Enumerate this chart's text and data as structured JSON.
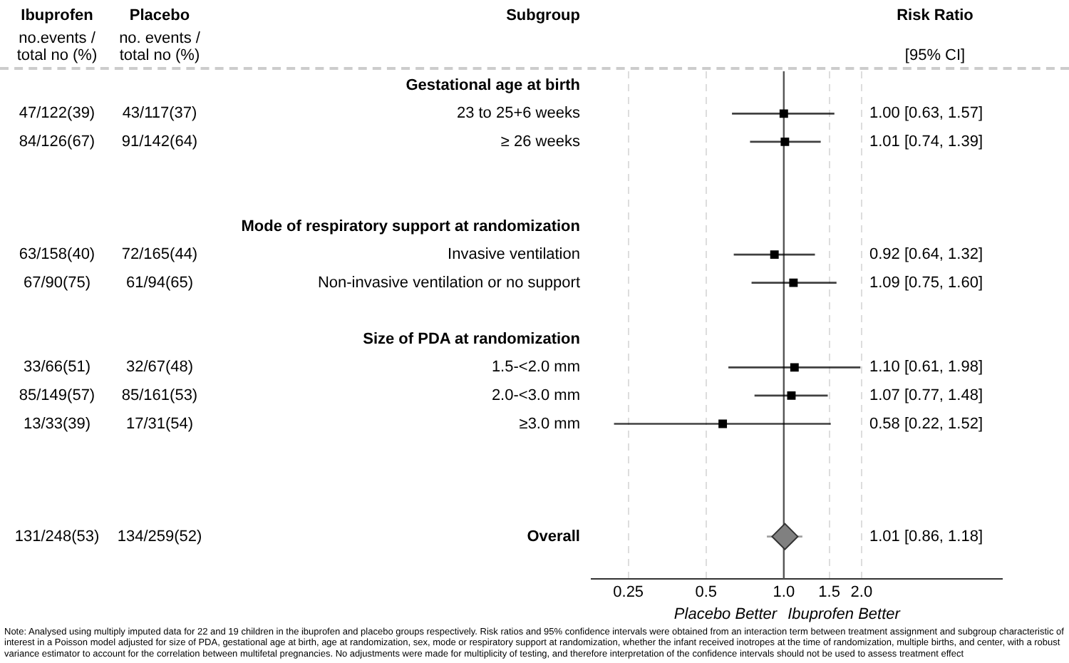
{
  "chart_data": {
    "type": "scatter",
    "orientation": "horizontal",
    "log": "x",
    "grid": "x",
    "marker": "square",
    "categories": [
      "Gestational age at birth",
      "23 to 25+6 weeks",
      "≥ 26 weeks",
      null,
      null,
      "Mode of respiratory support at randomization",
      "Invasive ventilation",
      "Non-invasive ventilation or no support",
      null,
      "Size of PDA at randomization",
      "1.5-<2.0 mm",
      "2.0-<3.0 mm",
      "≥3.0 mm",
      null,
      null,
      null,
      "Overall",
      null
    ],
    "xlim": [
      0.18,
      7
    ],
    "xticks": [
      0.25,
      0.5,
      {
        "value": 1,
        "label": "1.0"
      },
      1.5,
      {
        "value": 2,
        "label": "2.0"
      }
    ],
    "series": [
      {
        "color": "#000000",
        "values": [
          null,
          1.0,
          1.01,
          null,
          null,
          null,
          0.92,
          1.09,
          null,
          null,
          1.1,
          1.07,
          0.58,
          null,
          null,
          null,
          null,
          null
        ],
        "errors": [
          null,
          [
            0.63,
            1.57
          ],
          [
            0.74,
            1.39
          ],
          null,
          null,
          null,
          [
            0.64,
            1.32
          ],
          [
            0.75,
            1.6
          ],
          null,
          null,
          [
            0.61,
            1.98
          ],
          [
            0.77,
            1.48
          ],
          [
            0.22,
            1.52
          ],
          null,
          null,
          null,
          null,
          null
        ]
      },
      {
        "color": "#808080",
        "marker": "diamond",
        "values": [
          null,
          null,
          null,
          null,
          null,
          null,
          null,
          null,
          null,
          null,
          null,
          null,
          null,
          null,
          null,
          null,
          1.01,
          null
        ],
        "errors": [
          null,
          null,
          null,
          null,
          null,
          null,
          null,
          null,
          null,
          null,
          null,
          null,
          null,
          null,
          null,
          null,
          [
            0.86,
            1.18
          ],
          null
        ]
      }
    ],
    "ref_lines": [
      {
        "axis": "x",
        "value": 1,
        "color": "#555555"
      }
    ],
    "annotations": [
      "Subgroup",
      "Ibuprofen",
      "no.events / total no (%)",
      "Placebo",
      "no. events / total no (%)",
      "Risk Ratio",
      "[95% CI]",
      "47/122(39)",
      "43/117(37)",
      "1.00 [0.63, 1.57]",
      "84/126(67)",
      "91/142(64)",
      "1.01 [0.74, 1.39]",
      "63/158(40)",
      "72/165(44)",
      "0.92 [0.64, 1.32]",
      "67/90(75)",
      "61/94(65)",
      "1.09 [0.75, 1.60]",
      "33/66(51)",
      "32/67(48)",
      "1.10 [0.61, 1.98]",
      "85/149(57)",
      "85/161(53)",
      "1.07 [0.77, 1.48]",
      "13/33(39)",
      "17/31(54)",
      "0.58 [0.22, 1.52]",
      "131/248(53)",
      "134/259(52)",
      "1.01 [0.86, 1.18]",
      "Placebo Better",
      "Ibuprofen Better",
      "Note: Analysed using multiply imputed data for 22 and 19 children in the ibuprofen and placebo groups respectively. Risk ratios and 95% confidence intervals were obtained from an interaction term between treatment assignment and subgroup characteristic of interest in a Poisson model adjusted for size of PDA, gestational age at birth, age at randomization, sex, mode or respiratory support at randomization, whether the infant received inotropes at the time of randomization, multiple births, and center, with a robust variance estimator to account for the correlation between multifetal pregnancies. No adjustments were made for multiplicity of testing, and therefore interpretation of the confidence intervals should not be used to assess treatment effect"
    ]
  }
}
